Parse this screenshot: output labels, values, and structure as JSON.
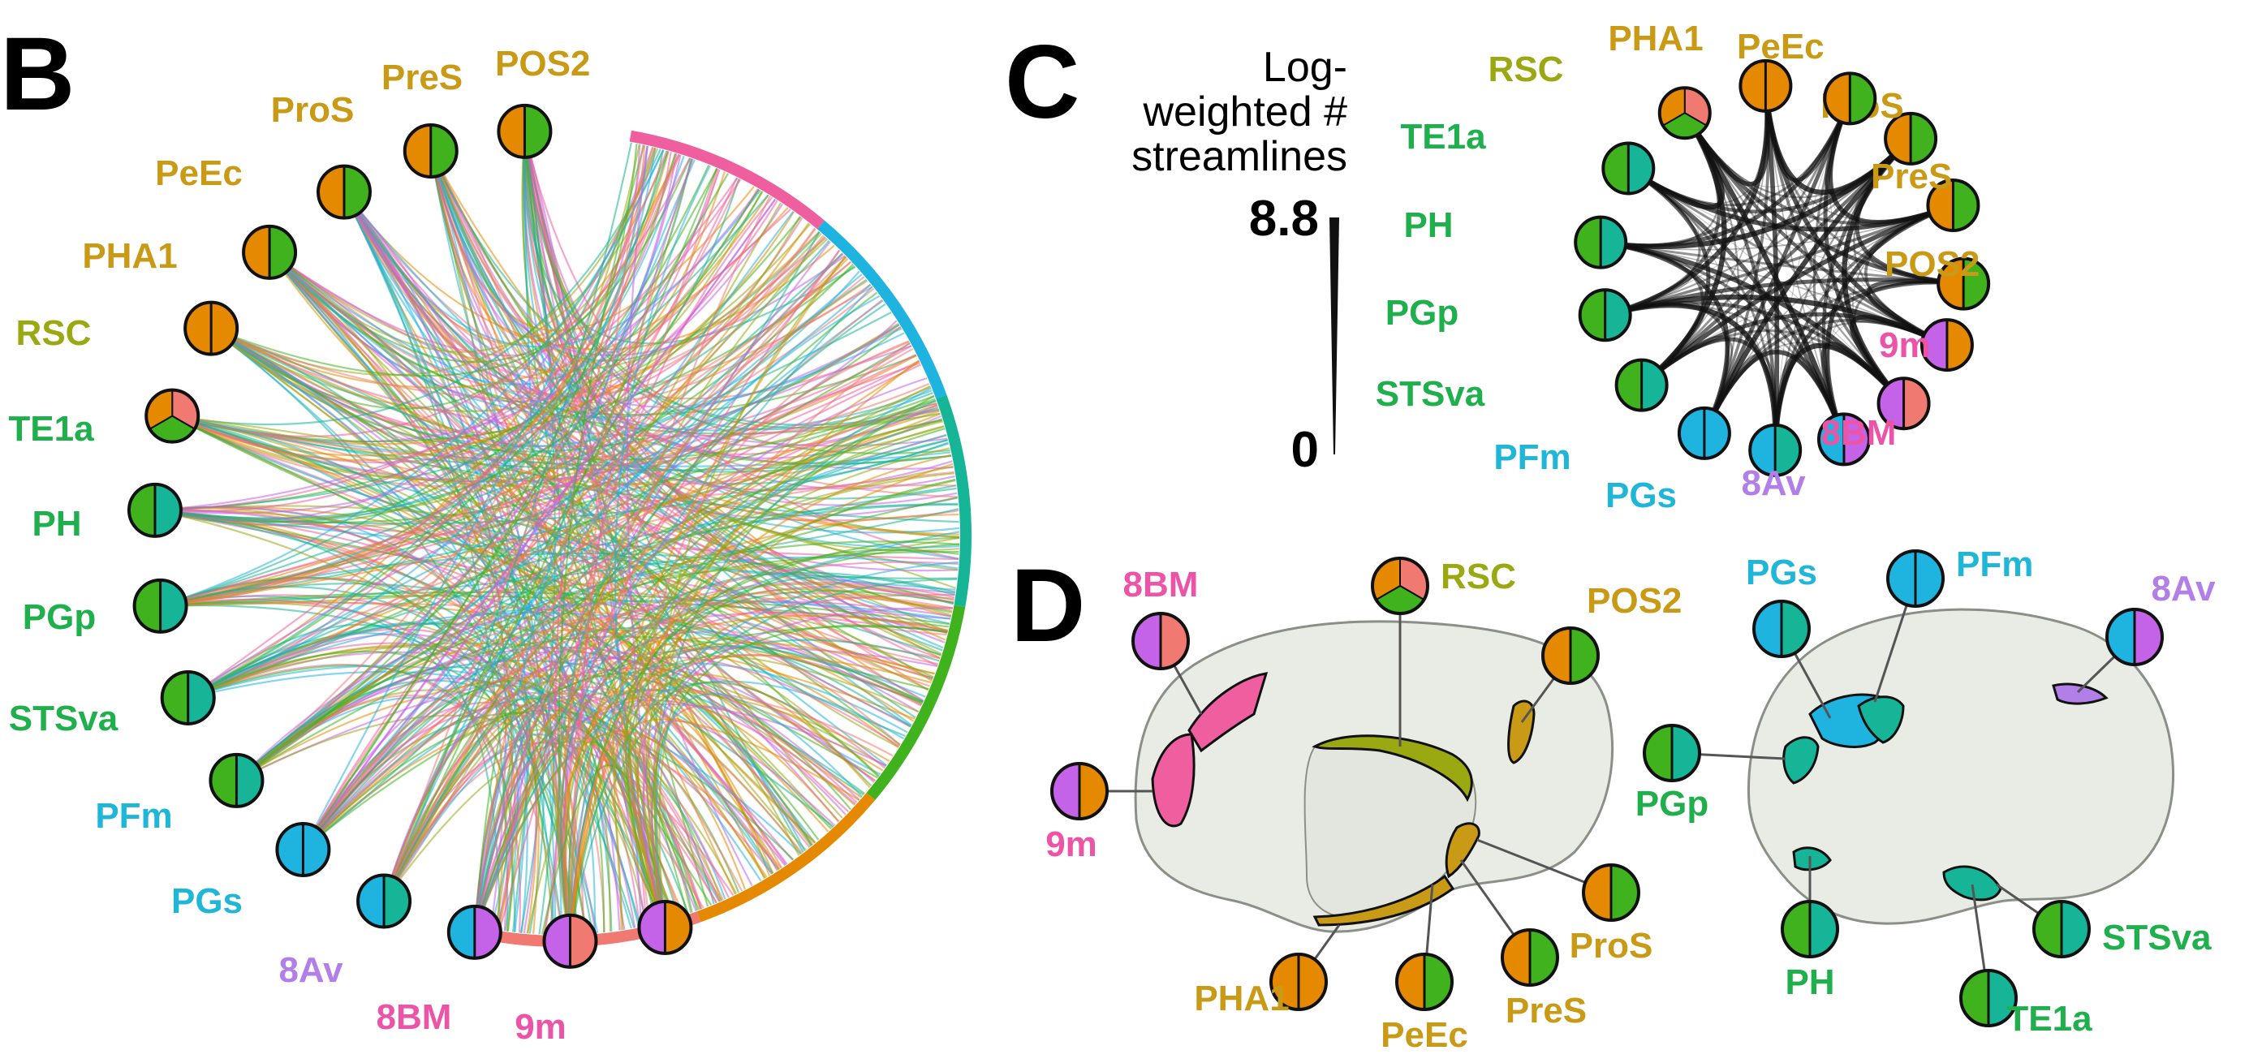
{
  "colors": {
    "pink_net": "#ef5fa0",
    "salmon_net": "#f07a72",
    "orange_net": "#e58a00",
    "olive_net": "#9aa812",
    "green_net": "#3fb21d",
    "teal_net": "#16b597",
    "cyan_net": "#1fb3e0",
    "violet_net": "#c463e8",
    "label_gold": "#c99a16",
    "label_olive": "#9aa812",
    "label_green": "#1faf4d",
    "label_cyan": "#1fb6d8",
    "label_pink": "#ec55a7",
    "label_violet": "#b27ee8",
    "cortex_fill": "#e9ece5",
    "cortex_edge": "#8a8f88"
  },
  "panels": {
    "b": {
      "letter": "B"
    },
    "c": {
      "letter": "C"
    },
    "d": {
      "letter": "D"
    }
  },
  "legend": {
    "title_lines": [
      "Log-",
      "weighted #",
      "streamlines"
    ],
    "max_value": "8.8",
    "min_value": "0"
  },
  "nodes": [
    {
      "id": "pos2",
      "label": "POS2",
      "label_color": "#c99a16",
      "pie": [
        "#e58a00",
        "#3fb21d"
      ]
    },
    {
      "id": "pres",
      "label": "PreS",
      "label_color": "#c99a16",
      "pie": [
        "#e58a00",
        "#3fb21d"
      ]
    },
    {
      "id": "pros",
      "label": "ProS",
      "label_color": "#c99a16",
      "pie": [
        "#e58a00",
        "#3fb21d"
      ]
    },
    {
      "id": "peec",
      "label": "PeEc",
      "label_color": "#c99a16",
      "pie": [
        "#e58a00",
        "#3fb21d"
      ]
    },
    {
      "id": "pha1",
      "label": "PHA1",
      "label_color": "#c99a16",
      "pie": [
        "#e58a00",
        "#e58a00"
      ]
    },
    {
      "id": "rsc",
      "label": "RSC",
      "label_color": "#9aa812",
      "pie": [
        "#f07a72",
        "#3fb21d",
        "#e58a00"
      ]
    },
    {
      "id": "te1a",
      "label": "TE1a",
      "label_color": "#1faf4d",
      "pie": [
        "#3fb21d",
        "#16b597"
      ]
    },
    {
      "id": "ph",
      "label": "PH",
      "label_color": "#1faf4d",
      "pie": [
        "#3fb21d",
        "#16b597"
      ]
    },
    {
      "id": "pgp",
      "label": "PGp",
      "label_color": "#1faf4d",
      "pie": [
        "#3fb21d",
        "#16b597"
      ]
    },
    {
      "id": "stsva",
      "label": "STSva",
      "label_color": "#1faf4d",
      "pie": [
        "#3fb21d",
        "#16b597"
      ]
    },
    {
      "id": "pfm",
      "label": "PFm",
      "label_color": "#1fb6d8",
      "pie": [
        "#1fb3e0",
        "#1fb3e0"
      ]
    },
    {
      "id": "pgs",
      "label": "PGs",
      "label_color": "#1fb6d8",
      "pie": [
        "#1fb3e0",
        "#16b597"
      ]
    },
    {
      "id": "8av",
      "label": "8Av",
      "label_color": "#b27ee8",
      "pie": [
        "#1fb3e0",
        "#c463e8"
      ]
    },
    {
      "id": "8bm",
      "label": "8BM",
      "label_color": "#ec55a7",
      "pie": [
        "#c463e8",
        "#f07a72"
      ]
    },
    {
      "id": "9m",
      "label": "9m",
      "label_color": "#ec55a7",
      "pie": [
        "#c463e8",
        "#e58a00"
      ]
    }
  ],
  "target_arcs": [
    "#f07a72",
    "#e58a00",
    "#3fb21d",
    "#16b597",
    "#1fb3e0",
    "#ef5fa0"
  ]
}
